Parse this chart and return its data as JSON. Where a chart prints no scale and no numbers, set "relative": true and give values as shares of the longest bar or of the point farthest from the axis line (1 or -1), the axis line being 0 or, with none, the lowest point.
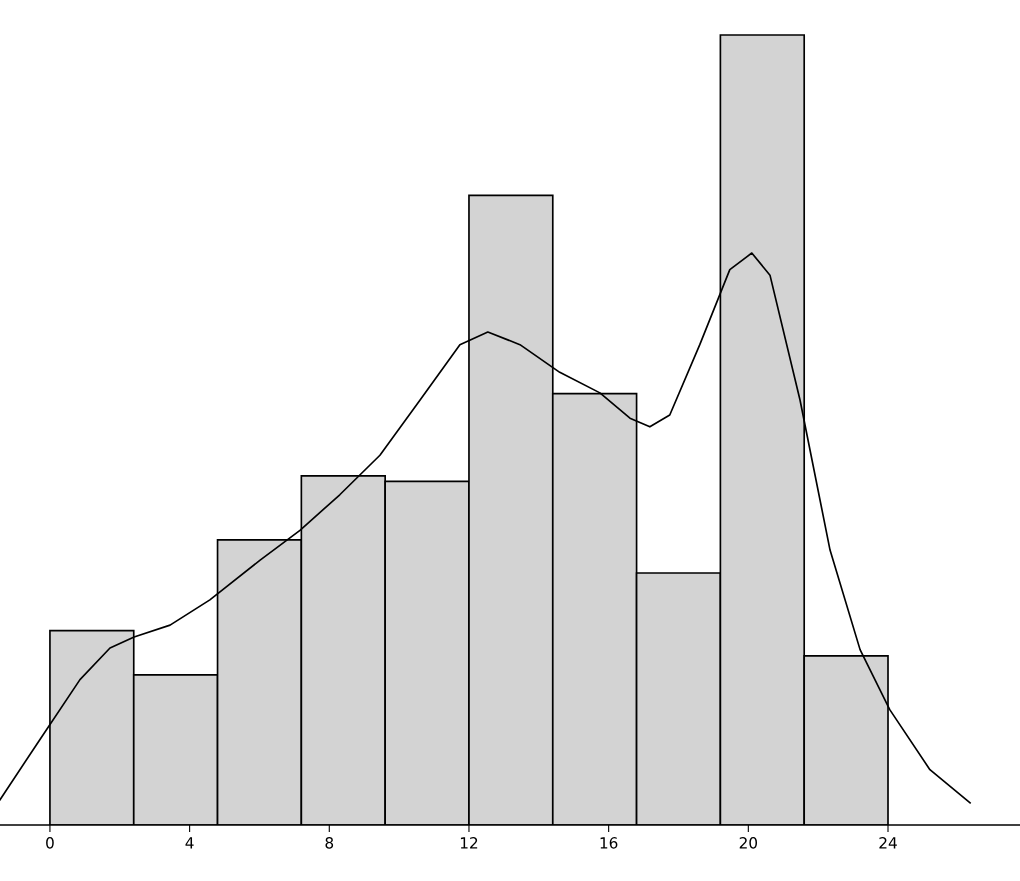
{
  "chart_data": {
    "type": "histogram",
    "relative": true,
    "bins": [
      0,
      2.4,
      4.8,
      7.2,
      9.6,
      12,
      14.4,
      16.8,
      19.2,
      21.6,
      24
    ],
    "values": [
      0.246,
      0.19,
      0.361,
      0.442,
      0.435,
      0.797,
      0.546,
      0.319,
      1,
      0.214
    ],
    "color": "#d3d3d3",
    "xlim": [
      -1.43,
      27.78
    ],
    "xticks": [
      0,
      4,
      8,
      12,
      16,
      20,
      24
    ],
    "grid": false,
    "series": [
      {
        "type": "line",
        "color": "#000000",
        "x": [
          -1.43,
          -0.29,
          0.86,
          1.72,
          2.41,
          3.44,
          4.58,
          6.01,
          7.16,
          8.3,
          9.45,
          10.6,
          11.74,
          12.54,
          13.46,
          14.6,
          15.75,
          16.61,
          17.18,
          17.75,
          18.61,
          19.47,
          20.1,
          20.62,
          21.48,
          22.34,
          23.2,
          24.05,
          25.2,
          26.35
        ],
        "values": [
          0.032,
          0.108,
          0.184,
          0.224,
          0.238,
          0.253,
          0.285,
          0.335,
          0.373,
          0.418,
          0.468,
          0.538,
          0.608,
          0.624,
          0.608,
          0.573,
          0.547,
          0.515,
          0.504,
          0.519,
          0.608,
          0.703,
          0.724,
          0.696,
          0.538,
          0.348,
          0.222,
          0.146,
          0.07,
          0.028
        ]
      }
    ]
  }
}
